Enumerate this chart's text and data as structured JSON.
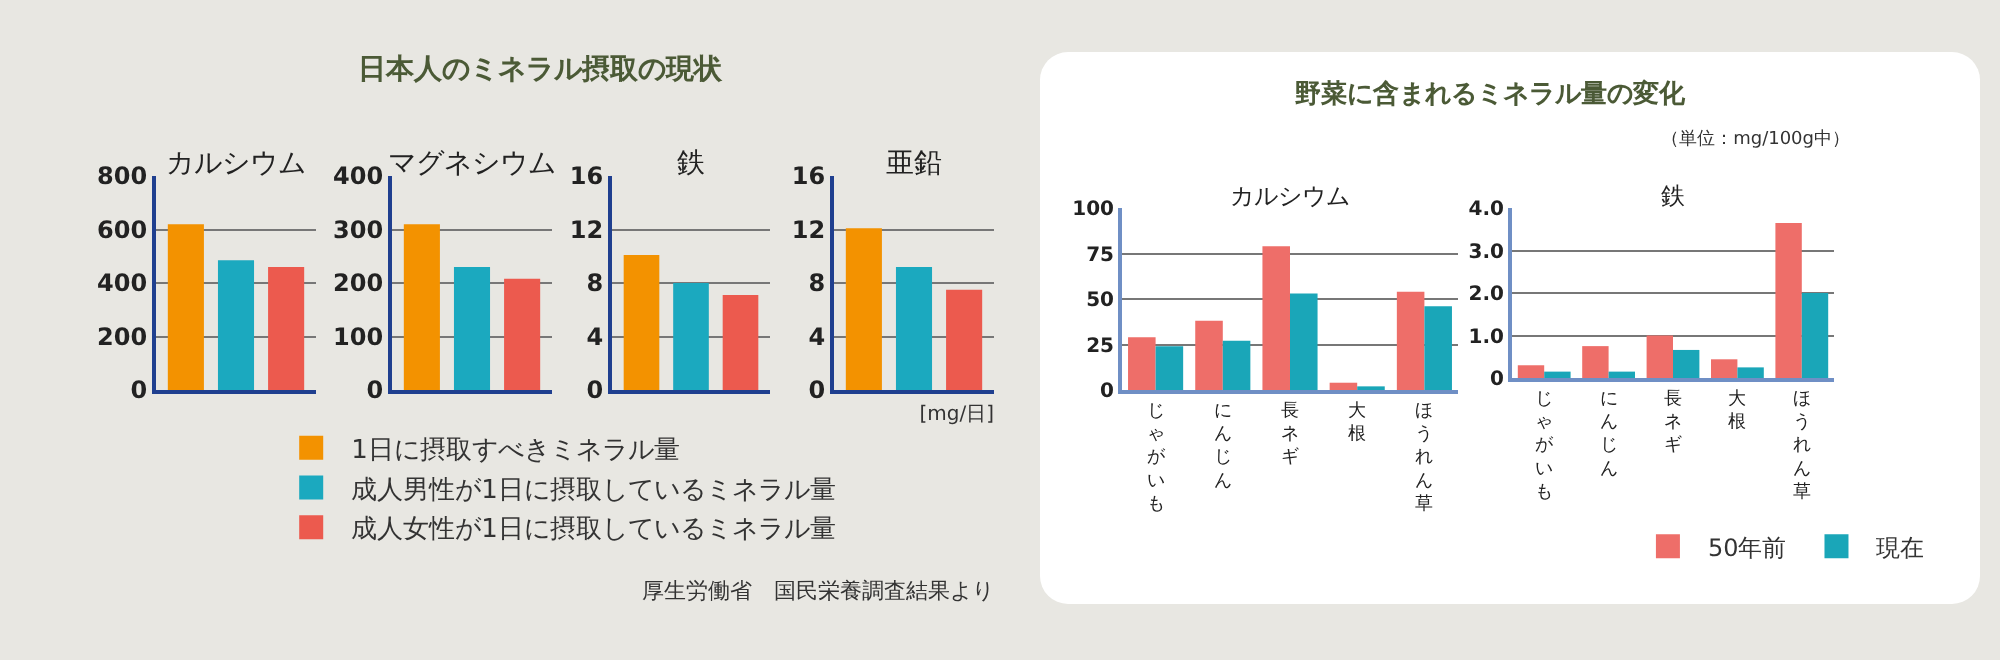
{
  "chart_data": [
    {
      "type": "bar",
      "title": "カルシウム",
      "categories": [
        null
      ],
      "ylim": [
        0,
        800
      ],
      "yticks": [
        0,
        200,
        400,
        600,
        800
      ],
      "grid": "y",
      "legend": "bottom",
      "annotations": [
        "日本人のミネラル摂取の現状"
      ],
      "series": [
        {
          "name": "1日に摂取すべきミネラル量",
          "color": "#f39200",
          "values": [
            620
          ]
        },
        {
          "name": "成人男性が1日に摂取しているミネラル量",
          "color": "#1ba9bf",
          "values": [
            485
          ]
        },
        {
          "name": "成人女性が1日に摂取しているミネラル量",
          "color": "#ec5a4e",
          "values": [
            460
          ]
        }
      ]
    },
    {
      "type": "bar",
      "title": "マグネシウム",
      "categories": [
        null
      ],
      "ylim": [
        0,
        400
      ],
      "yticks": [
        0,
        100,
        200,
        300,
        400
      ],
      "grid": "y",
      "series": [
        {
          "color": "#f39200",
          "values": [
            310
          ]
        },
        {
          "color": "#1ba9bf",
          "values": [
            230
          ]
        },
        {
          "color": "#ec5a4e",
          "values": [
            208
          ]
        }
      ]
    },
    {
      "type": "bar",
      "title": "鉄",
      "categories": [
        null
      ],
      "ylim": [
        0,
        16
      ],
      "yticks": [
        0,
        4,
        8,
        12,
        16
      ],
      "grid": "y",
      "series": [
        {
          "color": "#f39200",
          "values": [
            10.1
          ]
        },
        {
          "color": "#1ba9bf",
          "values": [
            8.0
          ]
        },
        {
          "color": "#ec5a4e",
          "values": [
            7.1
          ]
        }
      ]
    },
    {
      "type": "bar",
      "title": "亜鉛",
      "categories": [
        null
      ],
      "ylim": [
        0,
        16
      ],
      "yticks": [
        0,
        4,
        8,
        12,
        16
      ],
      "grid": "y",
      "annotations": [
        "[mg/日]",
        "厚生労働省　国民栄養調査結果より"
      ],
      "series": [
        {
          "color": "#f39200",
          "values": [
            12.1
          ]
        },
        {
          "color": "#1ba9bf",
          "values": [
            9.2
          ]
        },
        {
          "color": "#ec5a4e",
          "values": [
            7.5
          ]
        }
      ]
    },
    {
      "type": "bar",
      "title": "カルシウム",
      "categories": [
        "じゃがいも",
        "にんじん",
        "長ネギ",
        "大根",
        "ほうれん草"
      ],
      "ylim": [
        0,
        100
      ],
      "yticks": [
        0,
        25,
        50,
        75,
        100
      ],
      "grid": "y",
      "annotations": [
        "野菜に含まれるミネラル量の変化",
        "（単位：mg/100g中）"
      ],
      "series": [
        {
          "color": "#ee6e69",
          "values": [
            29,
            38,
            79,
            4,
            54
          ]
        },
        {
          "color": "#1aa6b8",
          "values": [
            24,
            27,
            53,
            2,
            46
          ]
        }
      ]
    },
    {
      "type": "bar",
      "title": "鉄",
      "categories": [
        "じゃがいも",
        "にんじん",
        "長ネギ",
        "大根",
        "ほうれん草"
      ],
      "ylim": [
        0,
        4
      ],
      "yticks": [
        0,
        {
          "value": 1,
          "label": "1.0"
        },
        {
          "value": 2,
          "label": "2.0"
        },
        {
          "value": 3,
          "label": "3.0"
        },
        {
          "value": 4,
          "label": "4.0"
        }
      ],
      "grid": "y",
      "legend": "bottom",
      "series": [
        {
          "name": "50年前",
          "color": "#ee6e69",
          "values": [
            0.3,
            0.75,
            1.0,
            0.44,
            3.65
          ]
        },
        {
          "name": "現在",
          "color": "#1aa6b8",
          "values": [
            0.15,
            0.15,
            0.66,
            0.25,
            2.0
          ]
        }
      ]
    }
  ]
}
